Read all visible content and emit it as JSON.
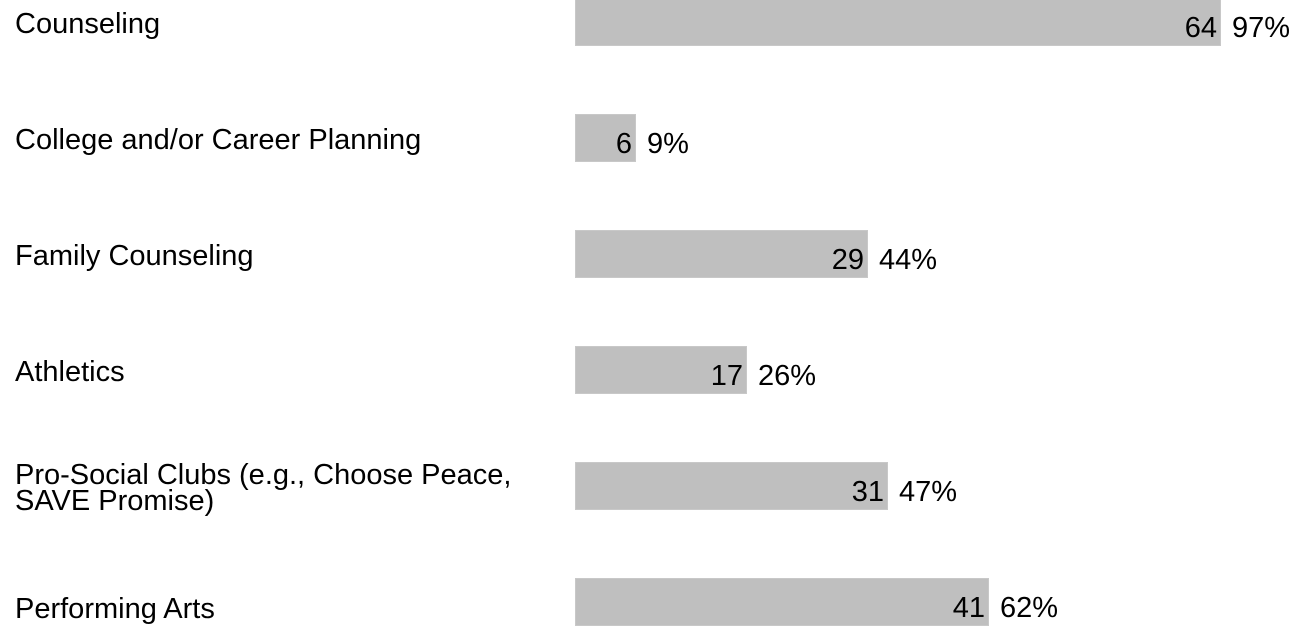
{
  "chart_data": {
    "type": "bar",
    "orientation": "horizontal",
    "categories": [
      "Counseling",
      "College and/or Career Planning",
      "Family Counseling",
      "Athletics",
      "Pro-Social Clubs (e.g., Choose Peace,\nSAVE Promise)",
      "Performing Arts"
    ],
    "series": [
      {
        "values": [
          64,
          6,
          29,
          17,
          31,
          41
        ],
        "percent_labels": [
          "97%",
          "9%",
          "44%",
          "26%",
          "47%",
          "62%"
        ]
      }
    ],
    "title": "",
    "xlabel": "",
    "ylabel": "",
    "xlim": [
      0,
      66
    ],
    "grid": false,
    "legend": "none",
    "bar_color": "#bfbfbf"
  }
}
